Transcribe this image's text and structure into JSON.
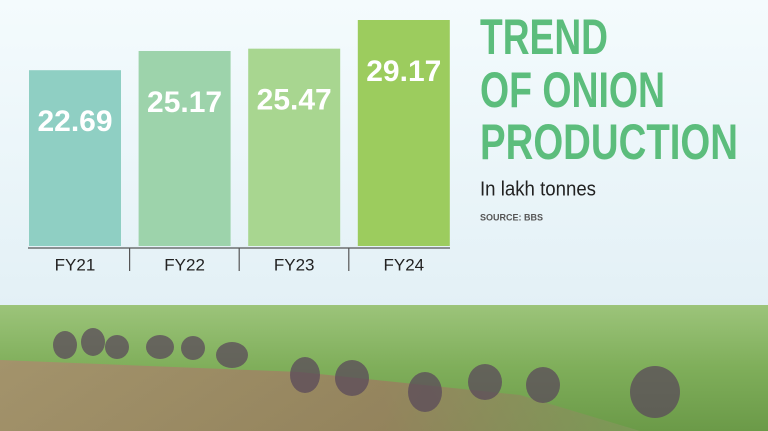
{
  "chart_data": {
    "type": "bar",
    "title_lines": [
      "TREND",
      "OF ONION",
      "PRODUCTION"
    ],
    "subtitle": "In lakh tonnes",
    "source": "SOURCE: BBS",
    "categories": [
      "FY21",
      "FY22",
      "FY23",
      "FY24"
    ],
    "values": [
      22.69,
      25.17,
      25.47,
      29.17
    ],
    "colors": [
      "#8fcfc3",
      "#9dd3ab",
      "#a8d690",
      "#9ccc5e"
    ],
    "title_color": "#5cbd7c"
  }
}
